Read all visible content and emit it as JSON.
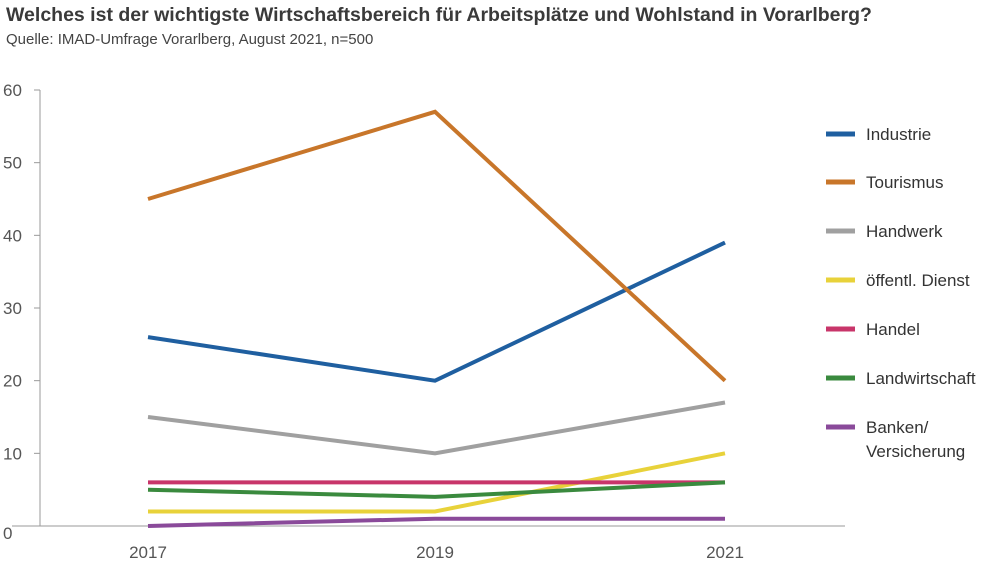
{
  "chart_data": {
    "type": "line",
    "title": "Welches ist der wichtigste Wirtschaftsbereich für Arbeitsplätze und Wohlstand in Vorarlberg?",
    "subtitle": "Quelle: IMAD-Umfrage Vorarlberg, August 2021, n=500",
    "x": [
      "2017",
      "2019",
      "2021"
    ],
    "ylim": [
      0,
      60
    ],
    "yticks": [
      0,
      10,
      20,
      30,
      40,
      50,
      60
    ],
    "grid": false,
    "legend_position": "right",
    "series": [
      {
        "name": "Industrie",
        "values": [
          26,
          20,
          39
        ],
        "color": "#1f5fa0"
      },
      {
        "name": "Tourismus",
        "values": [
          45,
          57,
          20
        ],
        "color": "#c8762a"
      },
      {
        "name": "Handwerk",
        "values": [
          15,
          10,
          17
        ],
        "color": "#a0a0a0"
      },
      {
        "name": "öffentl. Dienst",
        "values": [
          2,
          2,
          10
        ],
        "color": "#e8d23a"
      },
      {
        "name": "Handel",
        "values": [
          6,
          6,
          6
        ],
        "color": "#c8356a"
      },
      {
        "name": "Landwirtschaft",
        "values": [
          5,
          4,
          6
        ],
        "color": "#3a8a3e"
      },
      {
        "name": "Banken/\nVersicherung",
        "values": [
          0,
          1,
          1
        ],
        "color": "#8a4a9a"
      }
    ]
  }
}
